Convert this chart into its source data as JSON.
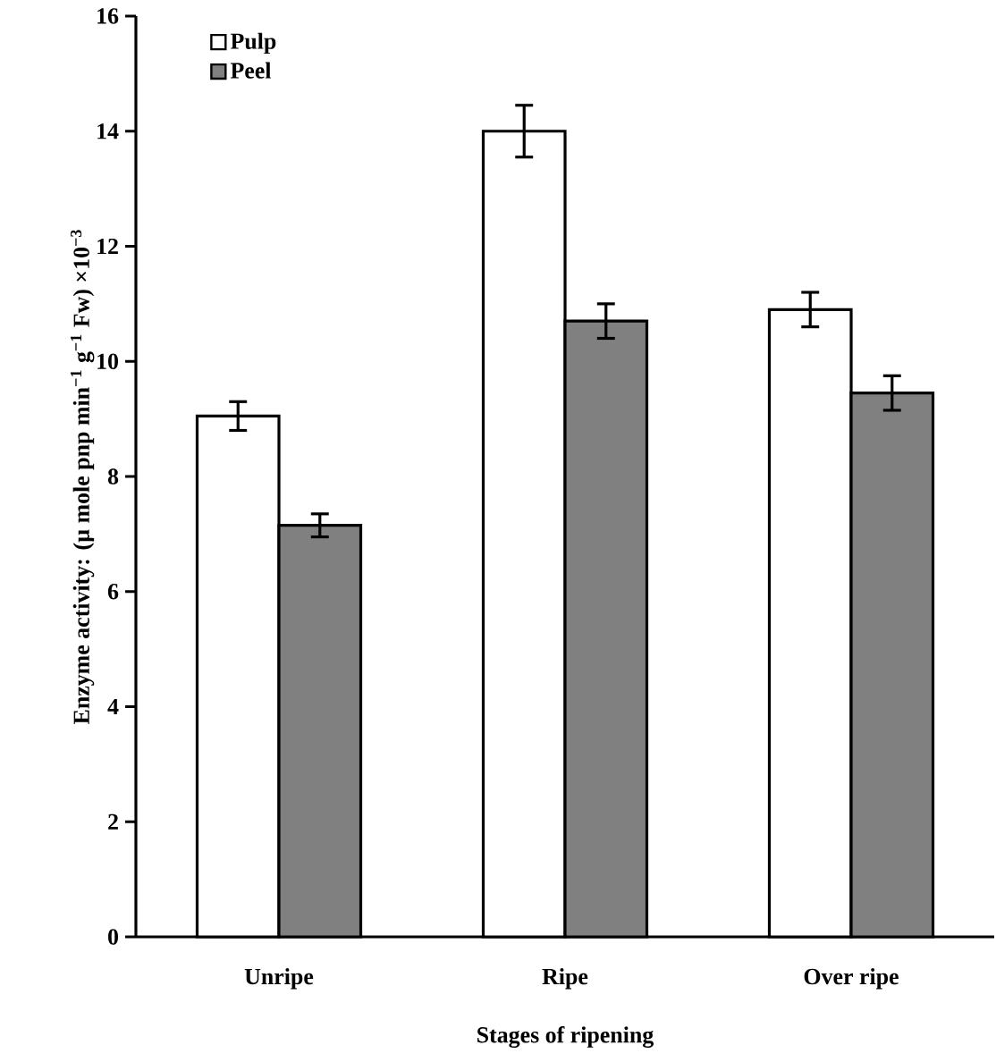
{
  "chart_data": {
    "type": "bar",
    "xlabel": "Stages of ripening",
    "ylabel": "Enzyme activity: (µ mole pnp min$^{−1}$ g$^{−1}$ Fw) ×10$^{−3}$",
    "categories": [
      "Unripe",
      "Ripe",
      "Over ripe"
    ],
    "series": [
      {
        "name": "Pulp",
        "color": "#ffffff",
        "values": [
          9.05,
          14.0,
          10.9
        ],
        "errors": [
          0.25,
          0.45,
          0.3
        ]
      },
      {
        "name": "Peel",
        "color": "#808080",
        "values": [
          7.15,
          10.7,
          9.45
        ],
        "errors": [
          0.2,
          0.3,
          0.3
        ]
      }
    ],
    "ylim": [
      0,
      16
    ],
    "yticks": [
      0,
      2,
      4,
      6,
      8,
      10,
      12,
      14,
      16
    ],
    "legend": "top left"
  }
}
